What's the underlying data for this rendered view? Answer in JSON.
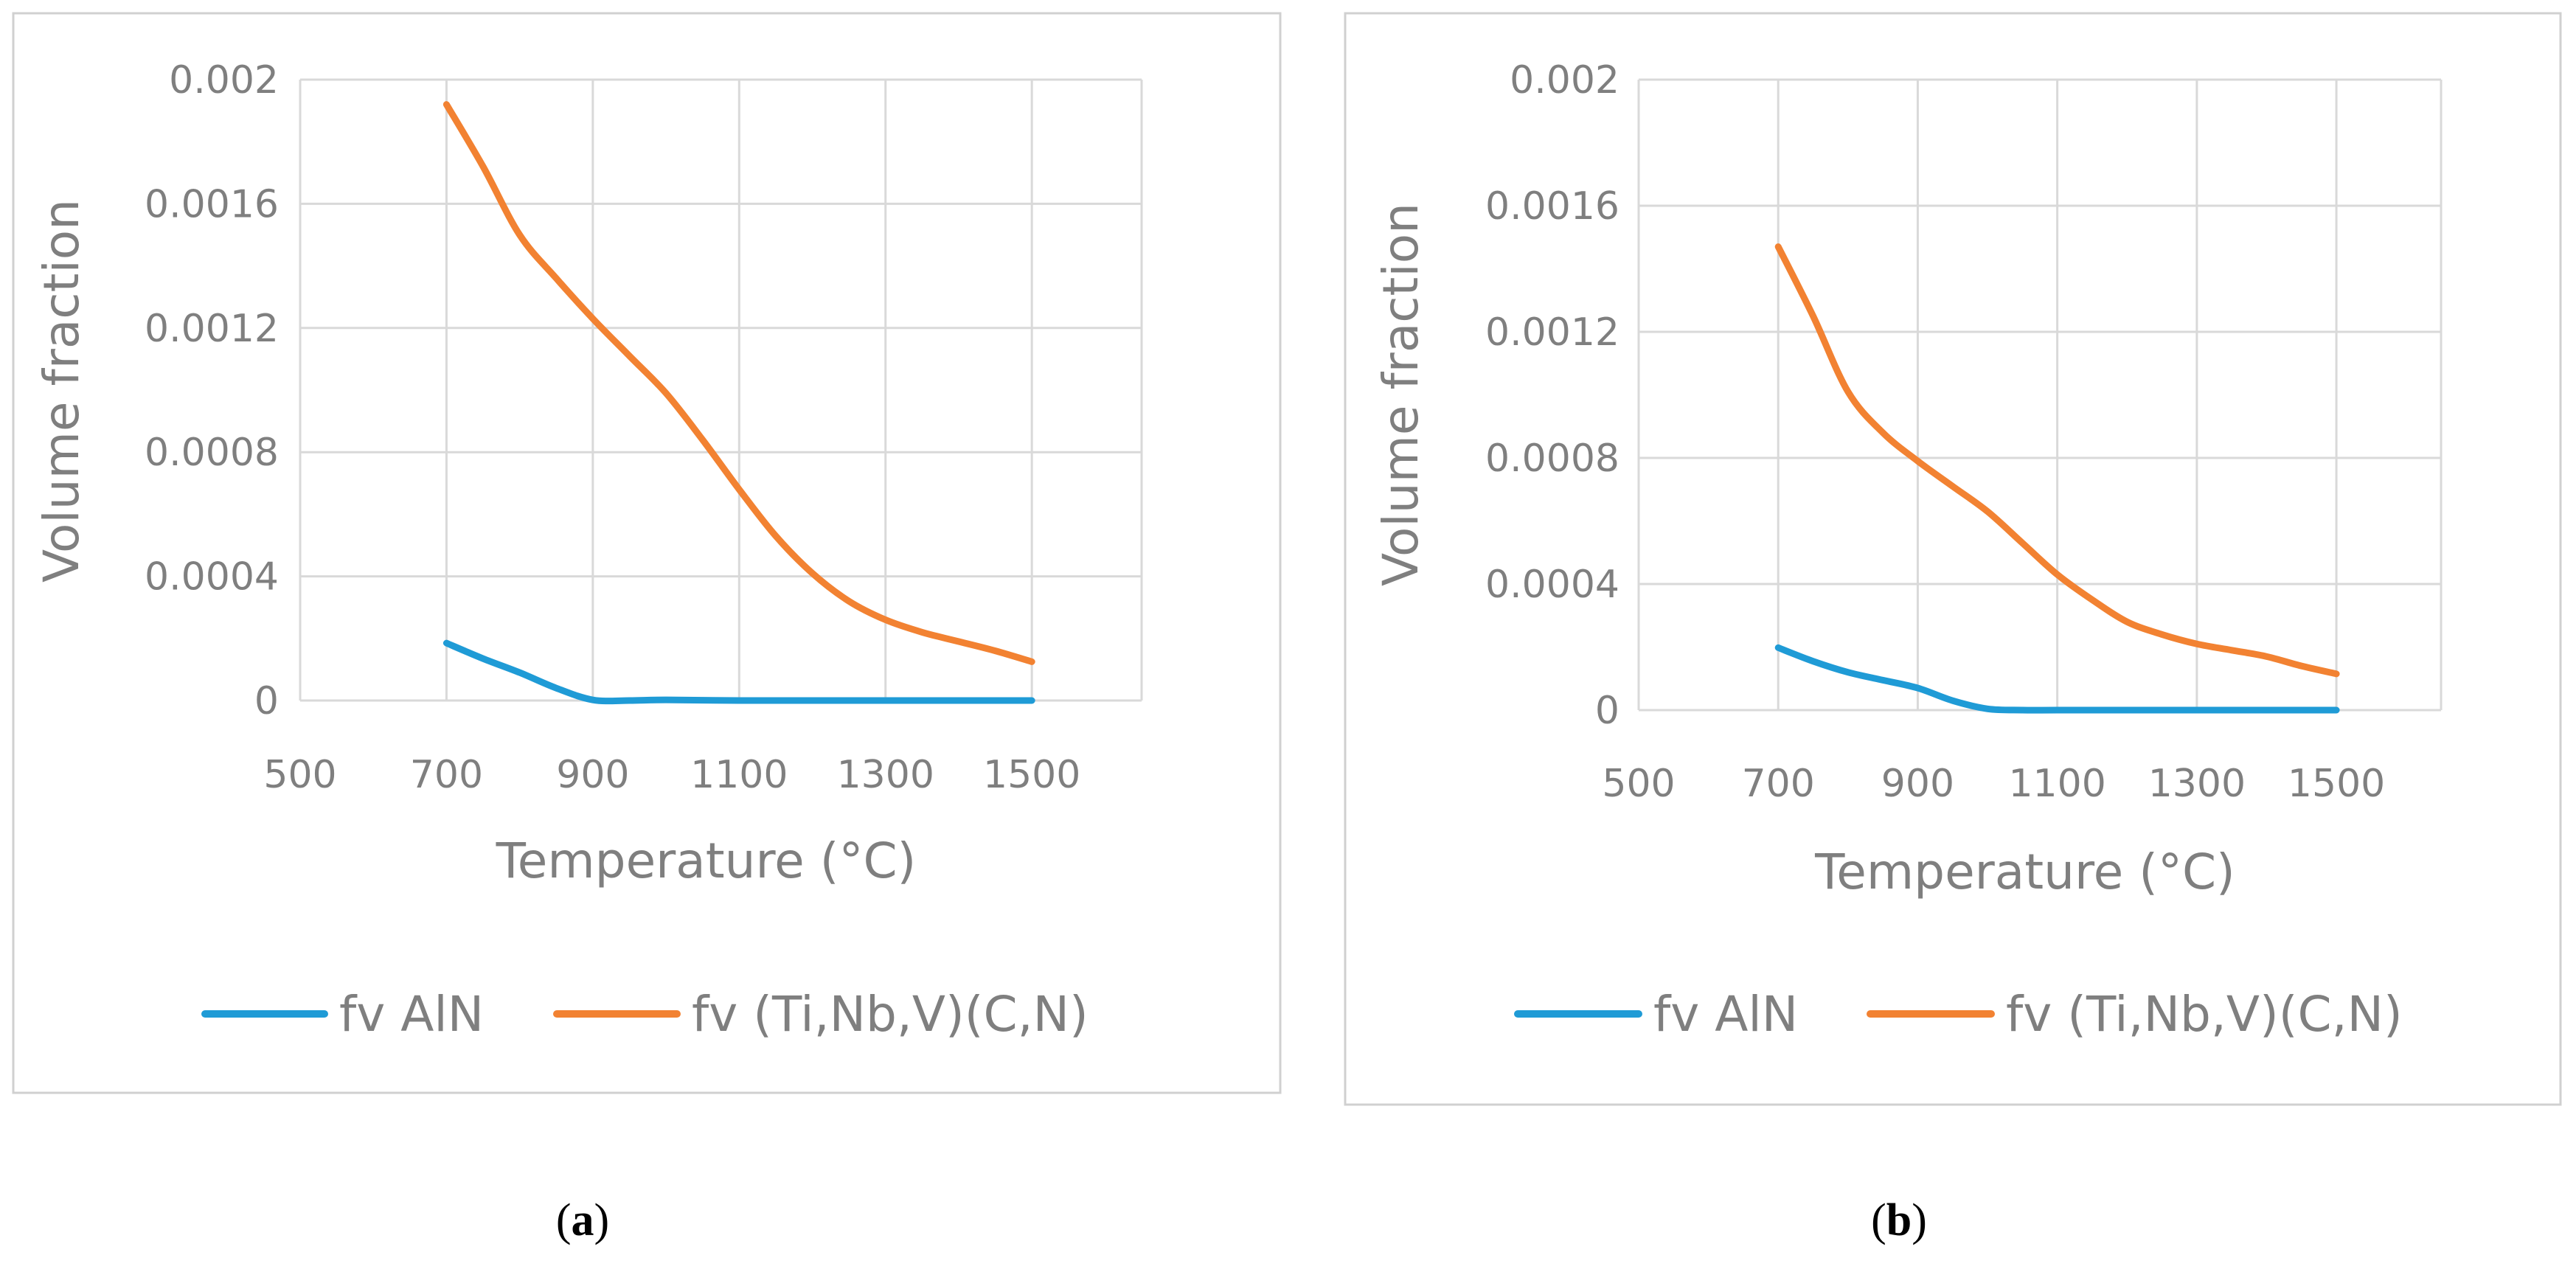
{
  "colors": {
    "fv_AlN": "#1f9bd6",
    "fv_TiNbV": "#f28232",
    "grid": "#d9d9d9",
    "frame": "#d0d0d0",
    "text": "#7f7f7f"
  },
  "chart_data": [
    {
      "type": "line",
      "panel": "a",
      "caption": {
        "open": "(",
        "letter": "a",
        "close": ")"
      },
      "xlabel": "Temperature (°C)",
      "ylabel": "Volume fraction",
      "xlim": [
        500,
        1650
      ],
      "ylim": [
        0,
        0.002
      ],
      "xticks": [
        500,
        700,
        900,
        1100,
        1300,
        1500
      ],
      "yticks": [
        {
          "value": 0,
          "label": "0"
        },
        {
          "value": 0.0004,
          "label": "0.0004"
        },
        {
          "value": 0.0008,
          "label": "0.0008"
        },
        {
          "value": 0.0012,
          "label": "0.0012"
        },
        {
          "value": 0.0016,
          "label": "0.0016"
        },
        {
          "value": 0.002,
          "label": "0.002"
        }
      ],
      "grid": true,
      "legend_position": "bottom",
      "series": [
        {
          "name": "fv AlN",
          "color_key": "fv_AlN",
          "x": [
            700,
            750,
            800,
            850,
            900,
            950,
            1000,
            1100,
            1200,
            1300,
            1400,
            1500
          ],
          "values": [
            0.000185,
            0.000135,
            9e-05,
            4e-05,
            2e-06,
            0,
            2e-06,
            0,
            0,
            0,
            0,
            0
          ]
        },
        {
          "name": "fv (Ti,Nb,V)(C,N)",
          "color_key": "fv_TiNbV",
          "x": [
            700,
            750,
            800,
            850,
            900,
            950,
            1000,
            1050,
            1100,
            1150,
            1200,
            1250,
            1300,
            1350,
            1400,
            1450,
            1500
          ],
          "values": [
            0.00192,
            0.00172,
            0.0015,
            0.00136,
            0.00123,
            0.00111,
            0.00099,
            0.00084,
            0.00068,
            0.00053,
            0.00041,
            0.00032,
            0.00026,
            0.00022,
            0.00019,
            0.00016,
            0.000125
          ]
        }
      ]
    },
    {
      "type": "line",
      "panel": "b",
      "caption": {
        "open": "(",
        "letter": "b",
        "close": ")"
      },
      "xlabel": "Temperature (°C)",
      "ylabel": "Volume fraction",
      "xlim": [
        500,
        1650
      ],
      "ylim": [
        0,
        0.002
      ],
      "xticks": [
        500,
        700,
        900,
        1100,
        1300,
        1500
      ],
      "yticks": [
        {
          "value": 0,
          "label": "0"
        },
        {
          "value": 0.0004,
          "label": "0.0004"
        },
        {
          "value": 0.0008,
          "label": "0.0008"
        },
        {
          "value": 0.0012,
          "label": "0.0012"
        },
        {
          "value": 0.0016,
          "label": "0.0016"
        },
        {
          "value": 0.002,
          "label": "0.002"
        }
      ],
      "grid": true,
      "legend_position": "bottom",
      "series": [
        {
          "name": "fv AlN",
          "color_key": "fv_AlN",
          "x": [
            700,
            750,
            800,
            850,
            900,
            950,
            1000,
            1050,
            1100,
            1200,
            1300,
            1400,
            1500
          ],
          "values": [
            0.000198,
            0.000155,
            0.00012,
            9.5e-05,
            7e-05,
            3e-05,
            4e-06,
            0,
            0,
            0,
            0,
            0,
            0
          ]
        },
        {
          "name": "fv (Ti,Nb,V)(C,N)",
          "color_key": "fv_TiNbV",
          "x": [
            700,
            750,
            800,
            850,
            900,
            950,
            1000,
            1050,
            1100,
            1150,
            1200,
            1250,
            1300,
            1350,
            1400,
            1450,
            1500
          ],
          "values": [
            0.00147,
            0.00125,
            0.00101,
            0.00088,
            0.00079,
            0.00071,
            0.00063,
            0.00053,
            0.00043,
            0.00035,
            0.00028,
            0.00024,
            0.00021,
            0.00019,
            0.00017,
            0.00014,
            0.000115
          ]
        }
      ]
    }
  ]
}
